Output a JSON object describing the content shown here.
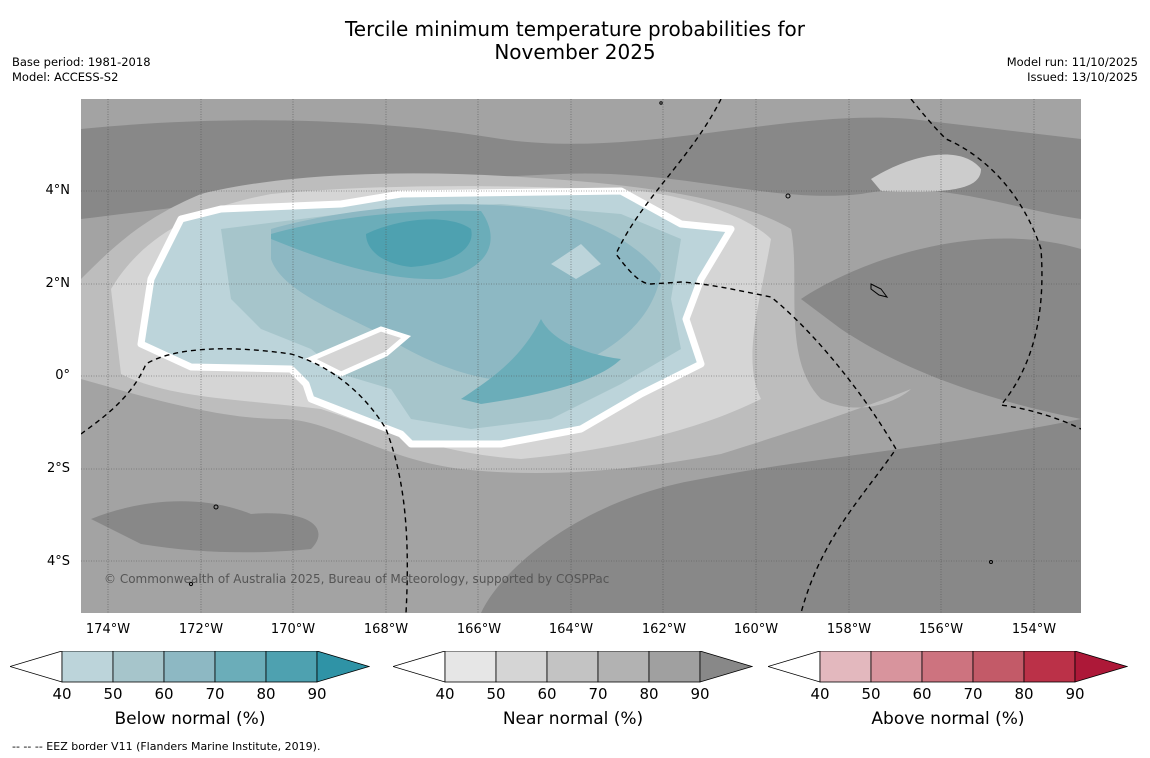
{
  "header": {
    "title_line1": "Tercile minimum temperature probabilities for",
    "title_line2": "November 2025",
    "base_period": "Base period: 1981-2018",
    "model": "Model: ACCESS-S2",
    "model_run": "Model run: 11/10/2025",
    "issued": "Issued: 13/10/2025"
  },
  "map": {
    "credit": "© Commonwealth of Australia 2025, Bureau of Meteorology, supported by COSPPac",
    "lat_labels": [
      "4°N",
      "2°N",
      "0°",
      "2°S",
      "4°S"
    ],
    "lon_labels": [
      "174°W",
      "172°W",
      "170°W",
      "168°W",
      "166°W",
      "164°W",
      "162°W",
      "160°W",
      "158°W",
      "156°W",
      "154°W"
    ]
  },
  "colorbars": [
    {
      "title": "Below normal (%)",
      "ticks": [
        "40",
        "50",
        "60",
        "70",
        "80",
        "90"
      ],
      "colors": [
        "#ffffff",
        "#bcd4da",
        "#a6c5cb",
        "#8db8c3",
        "#6badb9",
        "#4ea1b0",
        "#2f93a6"
      ]
    },
    {
      "title": "Near normal (%)",
      "ticks": [
        "40",
        "50",
        "60",
        "70",
        "80",
        "90"
      ],
      "colors": [
        "#ffffff",
        "#e6e6e6",
        "#d5d5d5",
        "#c3c3c3",
        "#b2b2b2",
        "#a0a0a0",
        "#888888"
      ]
    },
    {
      "title": "Above normal (%)",
      "ticks": [
        "40",
        "50",
        "60",
        "70",
        "80",
        "90"
      ],
      "colors": [
        "#ffffff",
        "#e3b8be",
        "#d8949d",
        "#cd737f",
        "#c35a68",
        "#bb3148",
        "#ad1838"
      ]
    }
  ],
  "footer": {
    "eez_note": "--  --  -- EEZ border V11 (Flanders Marine Institute, 2019)."
  }
}
